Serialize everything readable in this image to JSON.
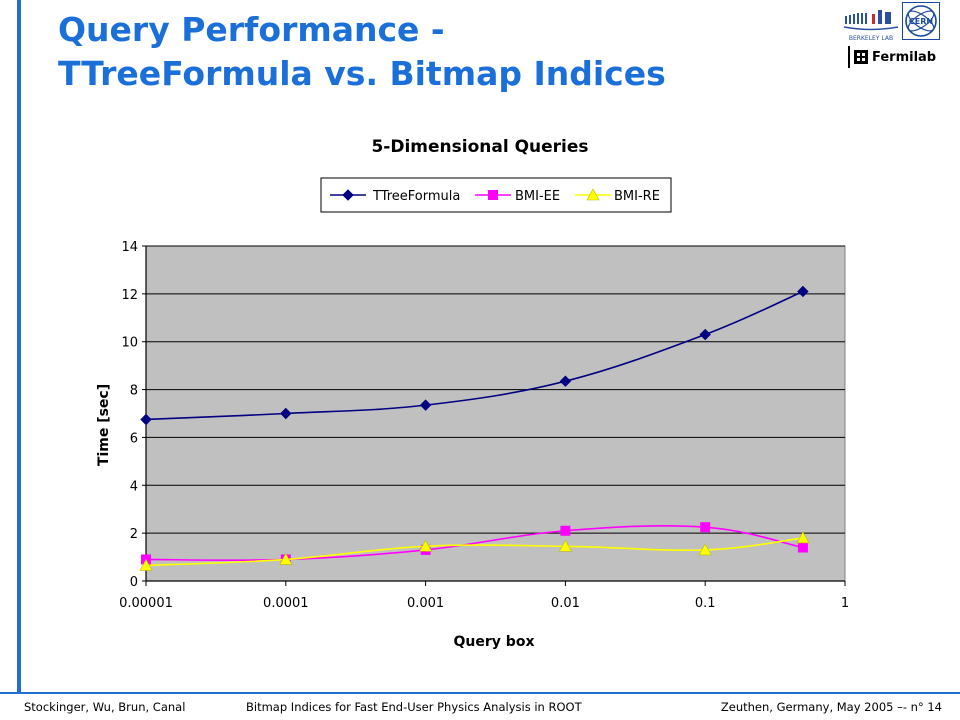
{
  "slide": {
    "title_line1": "Query Performance -",
    "title_line2": "TTreeFormula vs. Bitmap Indices"
  },
  "logos": {
    "fermilab": "Fermilab",
    "lbl": "BERKELEY LAB",
    "cern": "CERN"
  },
  "footer": {
    "authors": "Stockinger, Wu, Brun, Canal",
    "talk": "Bitmap Indices for Fast End-User Physics Analysis in ROOT",
    "venue": "Zeuthen, Germany, May 2005 –- n° 14"
  },
  "colors": {
    "accent": "#1a6fd8",
    "plot_bg": "#c0c0c0",
    "ttree": "#000080",
    "bmi_ee": "#ff00ff",
    "bmi_re": "#ffff00"
  },
  "chart_data": {
    "type": "line",
    "title": "5-Dimensional Queries",
    "xlabel": "Query box",
    "ylabel": "Time [sec]",
    "x_scale": "log",
    "x_ticks": [
      "0.00001",
      "0.0001",
      "0.001",
      "0.01",
      "0.1",
      "1"
    ],
    "x_tick_values": [
      1e-05,
      0.0001,
      0.001,
      0.01,
      0.1,
      1
    ],
    "ylim": [
      0,
      14
    ],
    "y_ticks": [
      0,
      2,
      4,
      6,
      8,
      10,
      12,
      14
    ],
    "grid": true,
    "legend_position": "top",
    "series": [
      {
        "name": "TTreeFormula",
        "marker": "diamond",
        "color": "#000080",
        "points": [
          [
            1e-05,
            6.75
          ],
          [
            0.0001,
            7.0
          ],
          [
            0.001,
            7.35
          ],
          [
            0.01,
            8.35
          ],
          [
            0.1,
            10.3
          ],
          [
            0.5,
            12.1
          ]
        ]
      },
      {
        "name": "BMI-EE",
        "marker": "square",
        "color": "#ff00ff",
        "points": [
          [
            1e-05,
            0.9
          ],
          [
            0.0001,
            0.9
          ],
          [
            0.001,
            1.3
          ],
          [
            0.01,
            2.1
          ],
          [
            0.1,
            2.25
          ],
          [
            0.5,
            1.4
          ]
        ]
      },
      {
        "name": "BMI-RE",
        "marker": "triangle",
        "color": "#ffff00",
        "points": [
          [
            1e-05,
            0.65
          ],
          [
            0.0001,
            0.9
          ],
          [
            0.001,
            1.45
          ],
          [
            0.01,
            1.45
          ],
          [
            0.1,
            1.3
          ],
          [
            0.5,
            1.8
          ]
        ]
      }
    ]
  }
}
